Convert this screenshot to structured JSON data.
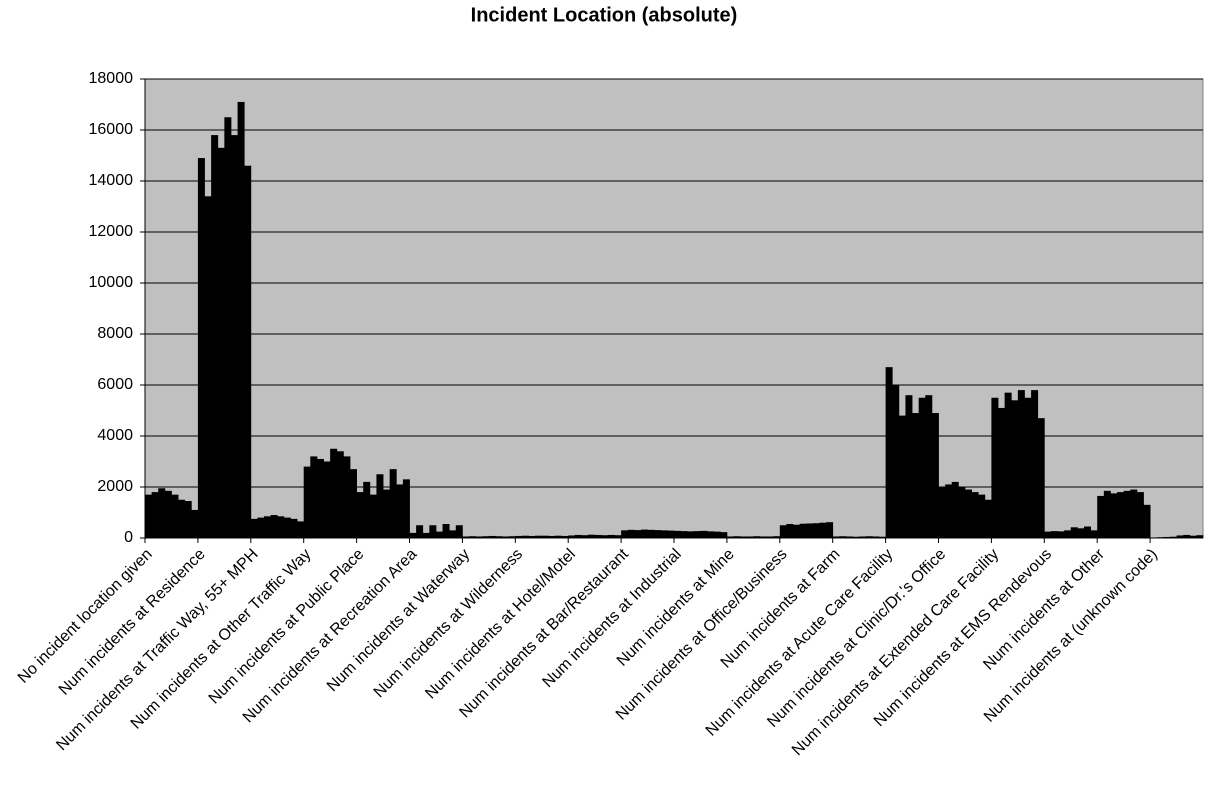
{
  "chart_data": {
    "type": "bar",
    "title": "Incident Location (absolute)",
    "categories": [
      "No incident location given",
      null,
      null,
      null,
      null,
      null,
      null,
      null,
      "Num incidents at Residence",
      null,
      null,
      null,
      null,
      null,
      null,
      null,
      "Num incidents at Traffic Way, 55+ MPH",
      null,
      null,
      null,
      null,
      null,
      null,
      null,
      "Num incidents at Other Traffic Way",
      null,
      null,
      null,
      null,
      null,
      null,
      null,
      "Num incidents at Public Place",
      null,
      null,
      null,
      null,
      null,
      null,
      null,
      "Num incidents at Recreation Area",
      null,
      null,
      null,
      null,
      null,
      null,
      null,
      "Num incidents at Waterway",
      null,
      null,
      null,
      null,
      null,
      null,
      null,
      "Num incidents at Wilderness",
      null,
      null,
      null,
      null,
      null,
      null,
      null,
      "Num incidents at Hotel/Motel",
      null,
      null,
      null,
      null,
      null,
      null,
      null,
      "Num incidents at Bar/Restaurant",
      null,
      null,
      null,
      null,
      null,
      null,
      null,
      "Num incidents at Industrial",
      null,
      null,
      null,
      null,
      null,
      null,
      null,
      "Num incidents at Mine",
      null,
      null,
      null,
      null,
      null,
      null,
      null,
      "Num incidents at Office/Business",
      null,
      null,
      null,
      null,
      null,
      null,
      null,
      "Num incidents at Farm",
      null,
      null,
      null,
      null,
      null,
      null,
      null,
      "Num incidents at Acute Care Facility",
      null,
      null,
      null,
      null,
      null,
      null,
      null,
      "Num incidents at Clinic/Dr.'s Office",
      null,
      null,
      null,
      null,
      null,
      null,
      null,
      "Num incidents at Extended Care Facility",
      null,
      null,
      null,
      null,
      null,
      null,
      null,
      "Num incidents at EMS Rendevous",
      null,
      null,
      null,
      null,
      null,
      null,
      null,
      "Num incidents at Other",
      null,
      null,
      null,
      null,
      null,
      null,
      null,
      "Num incidents at (unknown code)",
      null,
      null,
      null,
      null,
      null,
      null,
      null
    ],
    "values": [
      1700,
      1800,
      1950,
      1850,
      1700,
      1500,
      1450,
      1100,
      14900,
      13400,
      15800,
      15300,
      16500,
      15800,
      17100,
      14600,
      750,
      800,
      850,
      900,
      850,
      800,
      750,
      650,
      2800,
      3200,
      3100,
      3000,
      3500,
      3400,
      3200,
      2700,
      1800,
      2200,
      1700,
      2500,
      1900,
      2700,
      2100,
      2300,
      200,
      500,
      200,
      500,
      250,
      550,
      300,
      500,
      60,
      70,
      60,
      70,
      80,
      70,
      60,
      70,
      80,
      90,
      80,
      90,
      90,
      80,
      90,
      80,
      100,
      120,
      110,
      130,
      120,
      110,
      120,
      110,
      300,
      320,
      310,
      330,
      320,
      310,
      300,
      290,
      280,
      270,
      260,
      270,
      280,
      260,
      250,
      230,
      60,
      70,
      60,
      60,
      70,
      60,
      60,
      70,
      500,
      550,
      520,
      560,
      570,
      580,
      600,
      620,
      60,
      70,
      60,
      50,
      60,
      70,
      60,
      50,
      6700,
      6000,
      4800,
      5600,
      4900,
      5500,
      5600,
      4900,
      2000,
      2100,
      2200,
      2000,
      1900,
      1800,
      1700,
      1500,
      5500,
      5100,
      5700,
      5400,
      5800,
      5500,
      5800,
      4700,
      250,
      270,
      260,
      300,
      420,
      380,
      450,
      300,
      1650,
      1850,
      1750,
      1800,
      1850,
      1900,
      1800,
      1300,
      20,
      30,
      40,
      50,
      100,
      120,
      90,
      110
    ],
    "color": "#000000",
    "ylim": [
      0,
      18000
    ],
    "yticks": [
      0,
      2000,
      4000,
      6000,
      8000,
      10000,
      12000,
      14000,
      16000,
      18000
    ],
    "grid": true
  }
}
